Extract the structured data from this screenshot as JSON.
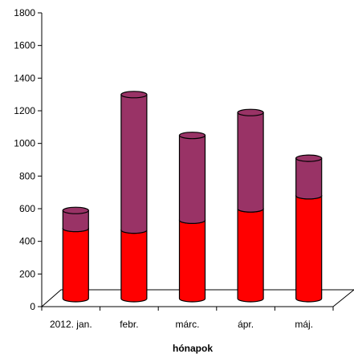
{
  "chart_data": {
    "type": "bar",
    "stacked": true,
    "three_d": true,
    "title": "",
    "xlabel": "hónapok",
    "ylabel": "",
    "ylim": [
      0,
      1800
    ],
    "yticks": [
      0,
      200,
      400,
      600,
      800,
      1000,
      1200,
      1400,
      1600,
      1800
    ],
    "grid": false,
    "legend": "none",
    "categories": [
      "2012. jan.",
      "febr.",
      "márc.",
      "ápr.",
      "máj."
    ],
    "series": [
      {
        "values": [
          430,
          420,
          480,
          550,
          630
        ],
        "color": "#ff0000"
      },
      {
        "values": [
          110,
          830,
          520,
          590,
          230
        ],
        "color": "#993366"
      }
    ]
  }
}
